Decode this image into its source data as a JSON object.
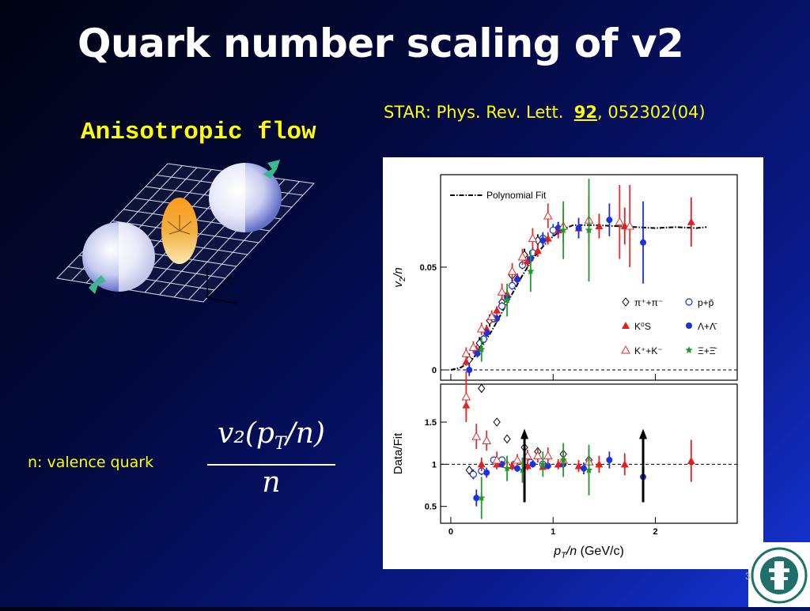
{
  "slide": {
    "title": "Quark number scaling of v2",
    "subheading": "Anisotropic flow",
    "reference_prefix": "STAR: Phys. Rev. Lett.  ",
    "reference_volume": "92",
    "reference_suffix": ", 052302(04)",
    "note": "n: valence quark",
    "formula_numerator": "v₂(p",
    "formula_numerator_sub": "T",
    "formula_numerator_end": "/n)",
    "formula_denominator": "n",
    "page_number": "3"
  },
  "chart_data": [
    {
      "type": "scatter",
      "panel": "top",
      "xlabel": "pT/n (GeV/c)",
      "ylabel": "v2/n",
      "xlim": [
        -0.1,
        2.8
      ],
      "ylim": [
        -0.005,
        0.095
      ],
      "yticks": [
        0,
        0.05
      ],
      "ytick_labels": [
        "0",
        "0.05"
      ],
      "legend_placement": "lower-right",
      "legend": [
        {
          "label": "Polynomial Fit",
          "marker": "dashdot-line"
        },
        {
          "label": "π⁺+π⁻",
          "marker": "diamond-open",
          "color": "#000000"
        },
        {
          "label": "p+p̄",
          "marker": "circle-open",
          "color": "#1a33cc"
        },
        {
          "label": "K⁰S",
          "marker": "triangle-filled",
          "color": "#e02020"
        },
        {
          "label": "Λ+Λ̄",
          "marker": "circle-filled",
          "color": "#1a33dd"
        },
        {
          "label": "K⁺+K⁻",
          "marker": "triangle-open",
          "color": "#e03030"
        },
        {
          "label": "Ξ+Ξ̄",
          "marker": "star-filled",
          "color": "#1f9a2a"
        }
      ],
      "fit": {
        "x": [
          0,
          0.1,
          0.2,
          0.3,
          0.4,
          0.5,
          0.6,
          0.7,
          0.8,
          0.9,
          1.0,
          1.1,
          1.2,
          1.4,
          1.6,
          1.8,
          2.0,
          2.2,
          2.4,
          2.5
        ],
        "y": [
          0,
          0.0012,
          0.0045,
          0.011,
          0.019,
          0.028,
          0.037,
          0.046,
          0.054,
          0.06,
          0.065,
          0.0685,
          0.0705,
          0.0705,
          0.07,
          0.0695,
          0.069,
          0.0695,
          0.069,
          0.0695
        ]
      },
      "series": [
        {
          "name": "π⁺+π⁻",
          "marker": "diamond-open",
          "color": "#000000",
          "x": [
            0.18,
            0.28,
            0.38,
            0.5,
            0.6,
            0.72,
            0.85,
            1.05
          ],
          "y": [
            0.005,
            0.013,
            0.024,
            0.033,
            0.046,
            0.056,
            0.063,
            0.069
          ],
          "err": [
            0.003,
            0.003,
            0.003,
            0.003,
            0.003,
            0.003,
            0.003,
            0.003
          ]
        },
        {
          "name": "p+p̄",
          "marker": "circle-open",
          "color": "#1a33cc",
          "x": [
            0.25,
            0.32,
            0.42,
            0.5,
            0.6,
            0.7,
            0.8,
            0.9,
            1.0
          ],
          "y": [
            0.009,
            0.015,
            0.025,
            0.031,
            0.041,
            0.051,
            0.057,
            0.064,
            0.068
          ],
          "err": [
            0.002,
            0.002,
            0.002,
            0.002,
            0.002,
            0.002,
            0.003,
            0.003,
            0.003
          ]
        },
        {
          "name": "K⁰S",
          "marker": "triangle-filled",
          "color": "#e02020",
          "x": [
            0.15,
            0.25,
            0.35,
            0.45,
            0.55,
            0.65,
            0.75,
            0.85,
            0.95,
            1.05,
            1.25,
            1.45,
            1.7,
            2.35
          ],
          "y": [
            0.004,
            0.01,
            0.02,
            0.029,
            0.037,
            0.045,
            0.053,
            0.058,
            0.064,
            0.068,
            0.069,
            0.07,
            0.07,
            0.072
          ],
          "err": [
            0.002,
            0.002,
            0.002,
            0.002,
            0.002,
            0.002,
            0.003,
            0.003,
            0.003,
            0.004,
            0.005,
            0.006,
            0.009,
            0.012
          ]
        },
        {
          "name": "Λ+Λ̄",
          "marker": "circle-filled",
          "color": "#1a33dd",
          "x": [
            0.18,
            0.26,
            0.35,
            0.45,
            0.55,
            0.65,
            0.78,
            0.9,
            1.05,
            1.25,
            1.55,
            1.88
          ],
          "y": [
            0.0,
            0.008,
            0.018,
            0.025,
            0.035,
            0.044,
            0.054,
            0.063,
            0.069,
            0.069,
            0.073,
            0.062
          ],
          "err": [
            0.003,
            0.002,
            0.002,
            0.002,
            0.002,
            0.002,
            0.002,
            0.003,
            0.003,
            0.005,
            0.008,
            0.02
          ]
        },
        {
          "name": "K⁺+K⁻",
          "marker": "triangle-open",
          "color": "#e03030",
          "x": [
            0.15,
            0.22,
            0.3,
            0.4,
            0.5,
            0.6,
            0.7,
            0.8,
            0.95,
            1.1,
            1.35,
            1.65,
            1.75
          ],
          "y": [
            0.008,
            0.011,
            0.02,
            0.026,
            0.038,
            0.048,
            0.055,
            0.064,
            0.075,
            0.07,
            0.073,
            0.072,
            0.07
          ],
          "err": [
            0.003,
            0.003,
            0.003,
            0.003,
            0.004,
            0.004,
            0.004,
            0.005,
            0.006,
            0.008,
            0.012,
            0.018,
            0.02
          ]
        },
        {
          "name": "Ξ+Ξ̄",
          "marker": "star-filled",
          "color": "#1f9a2a",
          "x": [
            0.3,
            0.55,
            0.78,
            1.1,
            1.35
          ],
          "y": [
            0.01,
            0.034,
            0.048,
            0.068,
            0.068
          ],
          "err": [
            0.006,
            0.008,
            0.01,
            0.014,
            0.025
          ]
        }
      ]
    },
    {
      "type": "scatter",
      "panel": "bottom",
      "xlabel": "pT/n (GeV/c)",
      "ylabel": "Data/Fit",
      "xlim": [
        -0.1,
        2.8
      ],
      "ylim": [
        0.3,
        1.95
      ],
      "xticks": [
        0,
        1,
        2
      ],
      "xtick_labels": [
        "0",
        "1",
        "2"
      ],
      "yticks": [
        0.5,
        1,
        1.5
      ],
      "ytick_labels": [
        "0.5",
        "1",
        "1.5"
      ],
      "reference_line": 1,
      "upper_limit_arrows_x": [
        0.72,
        1.88
      ],
      "series": [
        {
          "name": "π⁺+π⁻",
          "marker": "diamond-open",
          "color": "#000000",
          "x": [
            0.18,
            0.3,
            0.45,
            0.55,
            0.72,
            0.85,
            1.1,
            1.35
          ],
          "y": [
            0.93,
            1.9,
            1.5,
            1.3,
            1.2,
            1.15,
            1.12,
            1.05
          ],
          "err": [
            0.05,
            0.05,
            0.04,
            0.04,
            0.04,
            0.04,
            0.04,
            0.04
          ]
        },
        {
          "name": "p+p̄",
          "marker": "circle-open",
          "color": "#1a33cc",
          "x": [
            0.22,
            0.3,
            0.42,
            0.5,
            0.62,
            0.78,
            0.9
          ],
          "y": [
            0.88,
            0.92,
            1.05,
            1.05,
            1.0,
            1.02,
            1.0
          ],
          "err": [
            0.06,
            0.05,
            0.04,
            0.04,
            0.03,
            0.03,
            0.03
          ]
        },
        {
          "name": "K⁰S",
          "marker": "triangle-filled",
          "color": "#e02020",
          "x": [
            0.15,
            0.3,
            0.45,
            0.6,
            0.75,
            0.9,
            1.05,
            1.25,
            1.45,
            1.7,
            2.35
          ],
          "y": [
            1.7,
            1.0,
            1.0,
            0.98,
            0.98,
            0.97,
            1.0,
            0.98,
            1.0,
            1.0,
            1.04
          ],
          "err": [
            0.15,
            0.08,
            0.06,
            0.05,
            0.05,
            0.05,
            0.06,
            0.07,
            0.1,
            0.13,
            0.25
          ]
        },
        {
          "name": "Λ+Λ̄",
          "marker": "circle-filled",
          "color": "#1a33dd",
          "x": [
            0.25,
            0.35,
            0.5,
            0.65,
            0.8,
            0.95,
            1.1,
            1.3,
            1.55,
            1.88
          ],
          "y": [
            0.6,
            0.9,
            1.0,
            0.95,
            1.0,
            0.98,
            1.0,
            0.95,
            1.05,
            0.85
          ],
          "err": [
            0.1,
            0.06,
            0.04,
            0.04,
            0.04,
            0.04,
            0.05,
            0.07,
            0.1,
            0.3
          ]
        },
        {
          "name": "K⁺+K⁻",
          "marker": "triangle-open",
          "color": "#e03030",
          "x": [
            0.15,
            0.25,
            0.35,
            0.45,
            0.55,
            0.65,
            0.75,
            0.85,
            0.95,
            1.1,
            1.35
          ],
          "y": [
            1.8,
            1.33,
            1.28,
            1.05,
            1.0,
            1.05,
            1.1,
            1.1,
            1.1,
            1.05,
            1.03
          ],
          "err": [
            0.3,
            0.15,
            0.12,
            0.1,
            0.08,
            0.07,
            0.07,
            0.08,
            0.1,
            0.12,
            0.15
          ]
        },
        {
          "name": "Ξ+Ξ̄",
          "marker": "star-filled",
          "color": "#1f9a2a",
          "x": [
            0.3,
            0.55,
            0.7,
            0.9,
            1.1,
            1.35
          ],
          "y": [
            0.6,
            0.95,
            0.93,
            1.0,
            1.05,
            0.93
          ],
          "err": [
            0.25,
            0.15,
            0.15,
            0.15,
            0.2,
            0.3
          ]
        }
      ]
    }
  ]
}
